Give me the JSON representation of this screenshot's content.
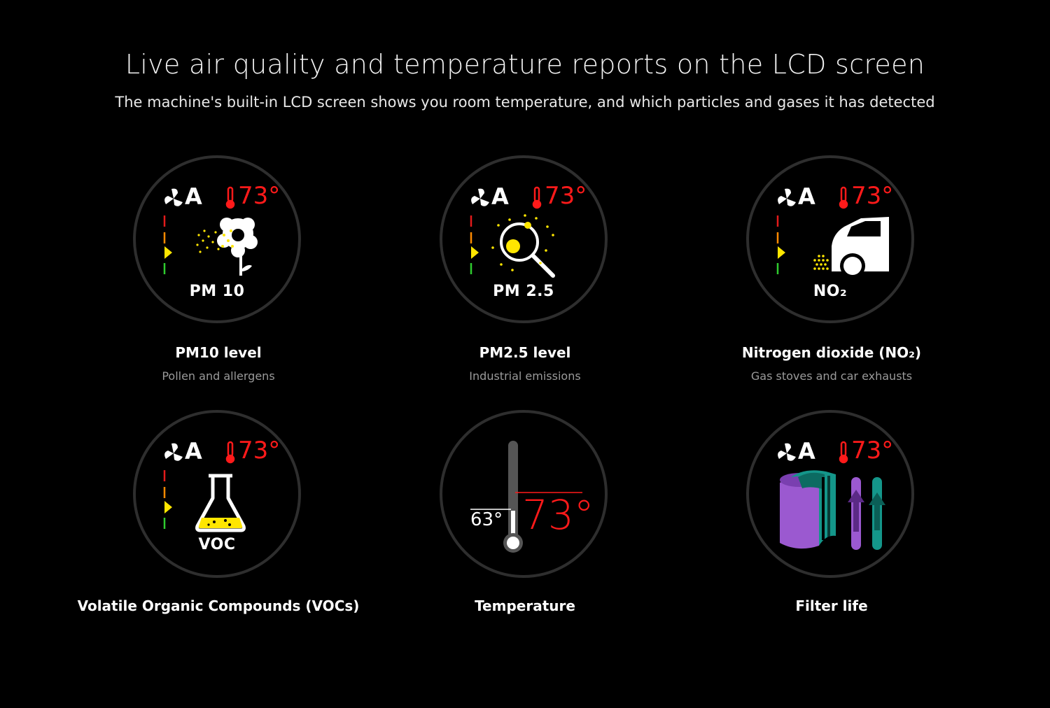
{
  "header": {
    "title": "Live air quality and temperature reports on the LCD screen",
    "subtitle": "The machine's built-in LCD screen shows you room temperature, and which particles and gases it has detected"
  },
  "display": {
    "mode": "A",
    "temperature": "73°",
    "fan_icon": "fan-icon",
    "thermometer_icon": "thermometer-icon",
    "level_colors": [
      "#e31b1b",
      "#ff8a00",
      "#ffe600",
      "#2ecc2e"
    ],
    "accent": "#ff1a1a"
  },
  "tiles": [
    {
      "screen_label": "PM 10",
      "title": "PM10 level",
      "subtitle": "Pollen and allergens",
      "icon": "pollen-flower-icon"
    },
    {
      "screen_label": "PM 2.5",
      "title": "PM2.5 level",
      "subtitle": "Industrial emissions",
      "icon": "magnifier-particles-icon"
    },
    {
      "screen_label": "NO₂",
      "title": "Nitrogen dioxide (NO₂)",
      "subtitle": "Gas stoves and car exhausts",
      "icon": "car-exhaust-icon"
    },
    {
      "screen_label": "VOC",
      "title": "Volatile Organic Compounds (VOCs)",
      "subtitle": "",
      "icon": "flask-icon"
    },
    {
      "screen_label": "",
      "title": "Temperature",
      "subtitle": "",
      "icon": "thermometer-gauge-icon",
      "target_temperature": "73°",
      "current_temperature": "63°"
    },
    {
      "screen_label": "",
      "title": "Filter life",
      "subtitle": "",
      "icon": "filter-life-icon",
      "filter_colors": [
        "#9b59d0",
        "#14968a"
      ]
    }
  ]
}
